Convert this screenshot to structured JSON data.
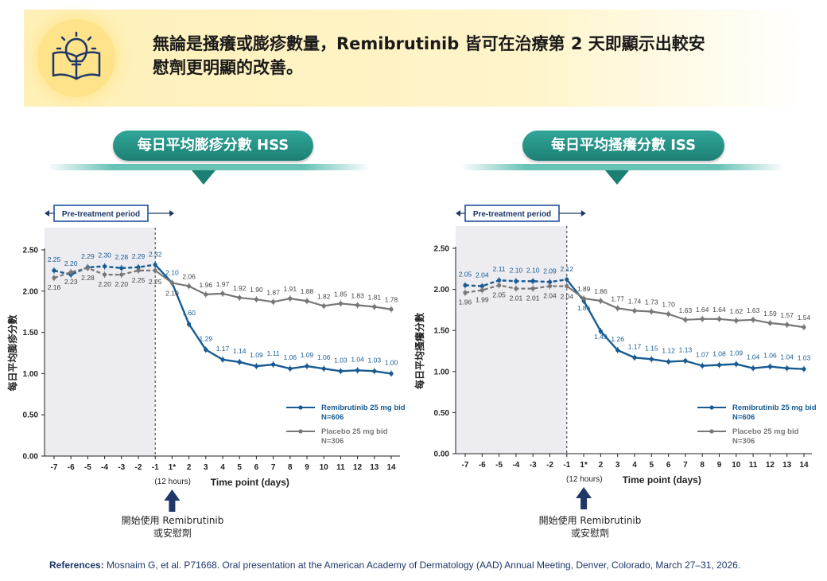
{
  "banner": {
    "text_line1": "無論是搔癢或膨疹數量，Remibrutinib 皆可在治療第 2 天即顯示出較安",
    "text_line2": "慰劑更明顯的改善。"
  },
  "colors": {
    "remibrutinib": "#175b92",
    "placebo": "#777777",
    "banner_bg": "#fff3c6",
    "title_teal": "#1c7f74"
  },
  "chart_data": [
    {
      "type": "line",
      "title": "每日平均膨疹分數 HSS",
      "ylabel": "每日平均膨疹分數",
      "xlabel": "Time point (days)",
      "ylim": [
        0,
        2.5
      ],
      "yticks": [
        "0.00",
        "0.50",
        "1.00",
        "1.50",
        "2.00",
        "2.50"
      ],
      "x_ticks": [
        "-7",
        "-6",
        "-5",
        "-4",
        "-3",
        "-2",
        "-1",
        "1*",
        "2",
        "3",
        "4",
        "5",
        "6",
        "7",
        "8",
        "9",
        "10",
        "11",
        "12",
        "13",
        "14"
      ],
      "x_note": "(12 hours)",
      "pretreatment_label": "Pre-treatment period",
      "series": [
        {
          "name": "Remibrutinib 25 mg bid",
          "n": "N=606",
          "values": [
            2.25,
            2.2,
            2.29,
            2.3,
            2.28,
            2.29,
            2.32,
            2.1,
            1.6,
            1.29,
            1.17,
            1.14,
            1.09,
            1.11,
            1.06,
            1.09,
            1.06,
            1.03,
            1.04,
            1.03,
            1.0
          ],
          "labels": [
            "2.25",
            "2.20",
            "2.29",
            "2.30",
            "2.28",
            "2.29",
            "2.32",
            "2.10",
            "1.60",
            "1.29",
            "1.17",
            "1.14",
            "1.09",
            "1.11",
            "1.06",
            "1.09",
            "1.06",
            "1.03",
            "1.04",
            "1.03",
            "1.00"
          ]
        },
        {
          "name": "Placebo 25 mg bid",
          "n": "N=306",
          "values": [
            2.16,
            2.23,
            2.28,
            2.2,
            2.2,
            2.25,
            2.25,
            2.1,
            2.06,
            1.96,
            1.97,
            1.92,
            1.9,
            1.87,
            1.91,
            1.88,
            1.82,
            1.85,
            1.83,
            1.81,
            1.78
          ],
          "labels": [
            "2.16",
            "2.23",
            "2.28",
            "2.20",
            "2.20",
            "2.25",
            "2.25",
            "2.10",
            "2.06",
            "1.96",
            "1.97",
            "1.92",
            "1.90",
            "1.87",
            "1.91",
            "1.88",
            "1.82",
            "1.85",
            "1.83",
            "1.81",
            "1.78"
          ]
        }
      ],
      "start_label_line1": "開始使用 Remibrutinib",
      "start_label_line2": "或安慰劑",
      "legend_position": "bottom-right"
    },
    {
      "type": "line",
      "title": "每日平均搔癢分數 ISS",
      "ylabel": "每日平均搔癢分數",
      "xlabel": "Time point (days)",
      "ylim": [
        0,
        2.5
      ],
      "yticks": [
        "0.00",
        "0.50",
        "1.00",
        "1.50",
        "2.00",
        "2.50"
      ],
      "x_ticks": [
        "-7",
        "-6",
        "-5",
        "-4",
        "-3",
        "-2",
        "-1",
        "1*",
        "2",
        "3",
        "4",
        "5",
        "6",
        "7",
        "8",
        "9",
        "10",
        "11",
        "12",
        "13",
        "14"
      ],
      "x_note": "(12 hours)",
      "pretreatment_label": "Pre-treatment period",
      "series": [
        {
          "name": "Remibrutinib 25 mg bid",
          "n": "N=606",
          "values": [
            2.05,
            2.04,
            2.11,
            2.1,
            2.1,
            2.09,
            2.12,
            1.86,
            1.49,
            1.26,
            1.17,
            1.15,
            1.12,
            1.13,
            1.07,
            1.08,
            1.09,
            1.04,
            1.06,
            1.04,
            1.03
          ],
          "labels": [
            "2.05",
            "2.04",
            "2.11",
            "2.10",
            "2.10",
            "2.09",
            "2.12",
            "1.86",
            "1.49",
            "1.26",
            "1.17",
            "1.15",
            "1.12",
            "1.13",
            "1.07",
            "1.08",
            "1.09",
            "1.04",
            "1.06",
            "1.04",
            "1.03"
          ]
        },
        {
          "name": "Placebo 25 mg bid",
          "n": "N=306",
          "values": [
            1.96,
            1.99,
            2.05,
            2.01,
            2.01,
            2.04,
            2.04,
            1.89,
            1.86,
            1.77,
            1.74,
            1.73,
            1.7,
            1.63,
            1.64,
            1.64,
            1.62,
            1.63,
            1.59,
            1.57,
            1.54
          ],
          "labels": [
            "1.96",
            "1.99",
            "2.05",
            "2.01",
            "2.01",
            "2.04",
            "2.04",
            "1.89",
            "1.86",
            "1.77",
            "1.74",
            "1.73",
            "1.70",
            "1.63",
            "1.64",
            "1.64",
            "1.62",
            "1.63",
            "1.59",
            "1.57",
            "1.54"
          ]
        }
      ],
      "start_label_line1": "開始使用 Remibrutinib",
      "start_label_line2": "或安慰劑",
      "legend_position": "bottom-right"
    }
  ],
  "references": {
    "label": "References:",
    "text": "Mosnaim G, et al. P71668. Oral presentation at the American Academy of Dermatology (AAD) Annual Meeting, Denver, Colorado, March 27–31, 2026."
  }
}
